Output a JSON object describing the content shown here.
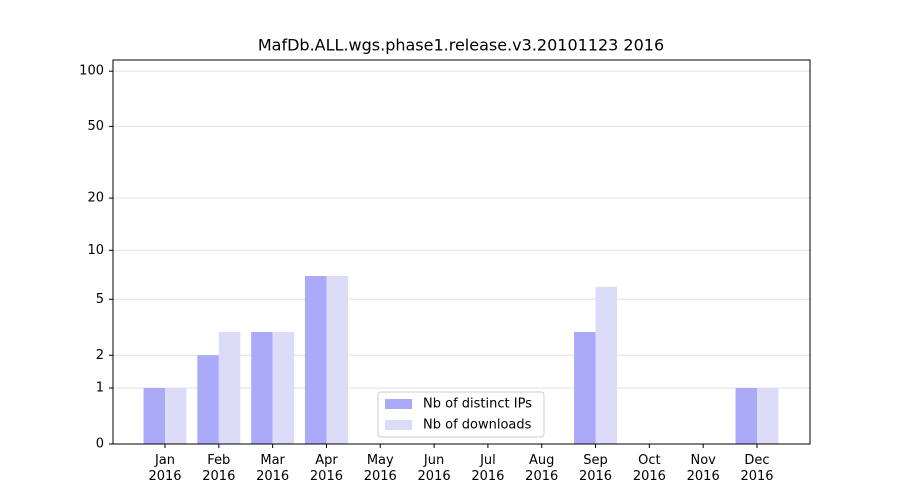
{
  "chart_data": {
    "type": "bar",
    "title": "MafDb.ALL.wgs.phase1.release.v3.20101123 2016",
    "categories": [
      "Jan 2016",
      "Feb 2016",
      "Mar 2016",
      "Apr 2016",
      "May 2016",
      "Jun 2016",
      "Jul 2016",
      "Aug 2016",
      "Sep 2016",
      "Oct 2016",
      "Nov 2016",
      "Dec 2016"
    ],
    "series": [
      {
        "name": "Nb of distinct IPs",
        "color": "#aaaaf8",
        "values": [
          1,
          2,
          3,
          7,
          0,
          0,
          0,
          0,
          3,
          0,
          0,
          1
        ]
      },
      {
        "name": "Nb of downloads",
        "color": "#dcdcf8",
        "values": [
          1,
          3,
          3,
          7,
          0,
          0,
          0,
          0,
          6,
          0,
          0,
          1
        ]
      }
    ],
    "yscale": "log1p",
    "ylim": [
      0,
      115
    ],
    "yticks": [
      0,
      1,
      2,
      5,
      10,
      20,
      50,
      100
    ],
    "grid": true,
    "legend": "lower center"
  }
}
